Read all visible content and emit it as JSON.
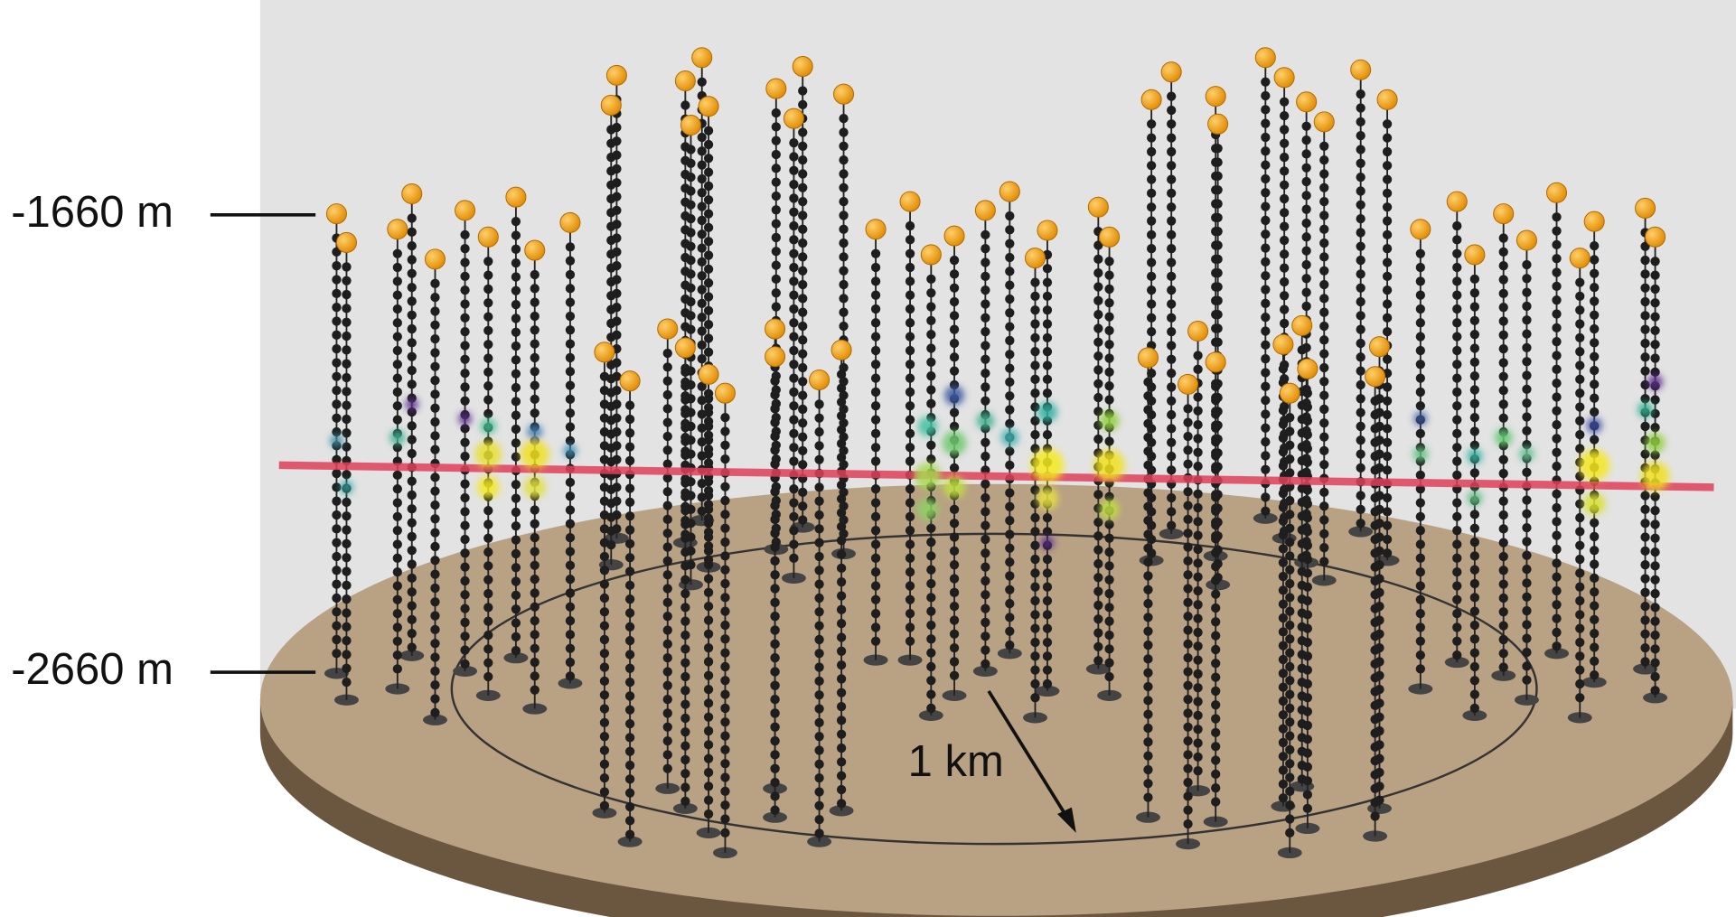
{
  "depth_labels": {
    "top": "-1660 m",
    "bottom": "-2660 m"
  },
  "scale_label": "1 km"
}
